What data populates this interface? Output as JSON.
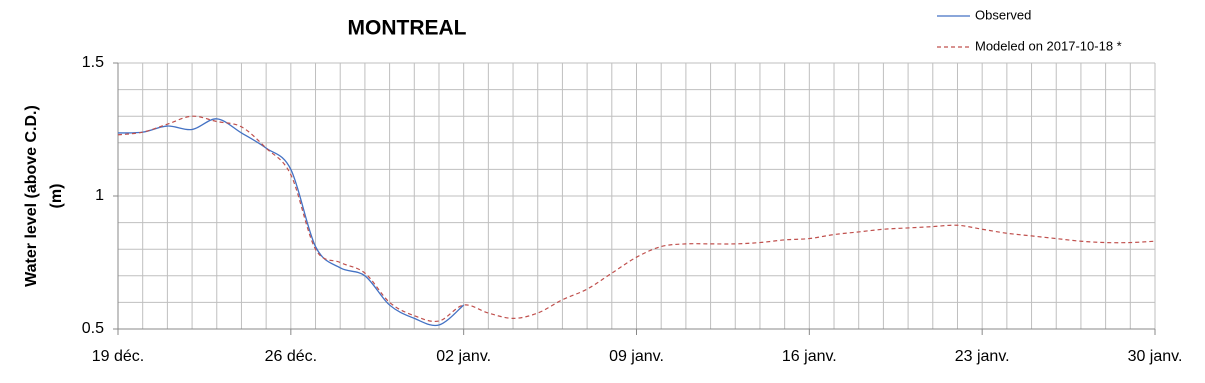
{
  "chart_data": {
    "type": "line",
    "title": "MONTREAL",
    "y_label": [
      "Water level (above C.D.)",
      "(m)"
    ],
    "categories": [
      "19 déc.",
      null,
      null,
      null,
      null,
      null,
      null,
      "26 déc.",
      null,
      null,
      null,
      null,
      null,
      null,
      "02 janv.",
      null,
      null,
      null,
      null,
      null,
      null,
      "09 janv.",
      null,
      null,
      null,
      null,
      null,
      null,
      "16 janv.",
      null,
      null,
      null,
      null,
      null,
      null,
      "23 janv.",
      null,
      null,
      null,
      null,
      null,
      null,
      "30 janv."
    ],
    "series": [
      {
        "name": "Observed",
        "color": "#4472c4",
        "dash": false,
        "values": [
          1.237,
          1.24,
          1.263,
          1.25,
          1.29,
          1.237,
          1.18,
          1.1,
          0.81,
          0.73,
          0.7,
          0.59,
          0.54,
          0.515,
          0.59,
          null,
          null,
          null,
          null,
          null,
          null,
          null,
          null,
          null,
          null,
          null,
          null,
          null,
          null,
          null,
          null,
          null,
          null,
          null,
          null,
          null,
          null,
          null,
          null,
          null,
          null,
          null,
          null
        ]
      },
      {
        "name": "Modeled on 2017-10-18 *",
        "color": "#c0504d",
        "dash": true,
        "values": [
          1.23,
          1.24,
          1.27,
          1.3,
          1.28,
          1.26,
          1.18,
          1.08,
          0.8,
          0.75,
          0.71,
          0.6,
          0.55,
          0.53,
          0.59,
          0.56,
          0.54,
          0.56,
          0.61,
          0.65,
          0.71,
          0.77,
          0.81,
          0.82,
          0.82,
          0.82,
          0.825,
          0.835,
          0.84,
          0.855,
          0.865,
          0.875,
          0.88,
          0.885,
          0.89,
          0.875,
          0.86,
          0.85,
          0.84,
          0.83,
          0.825,
          0.825,
          0.83
        ]
      }
    ],
    "ylim": [
      0.5,
      1.5
    ],
    "yticks": [
      0.5,
      1,
      1.5
    ],
    "grid": true
  }
}
